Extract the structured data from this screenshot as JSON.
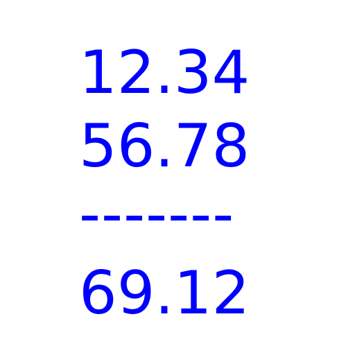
{
  "problem": {
    "operands": [
      "12.34",
      "56.78"
    ],
    "separator": "-------",
    "result": "69.12",
    "text_color": "#0000ff",
    "background_color": "#ffffff"
  }
}
